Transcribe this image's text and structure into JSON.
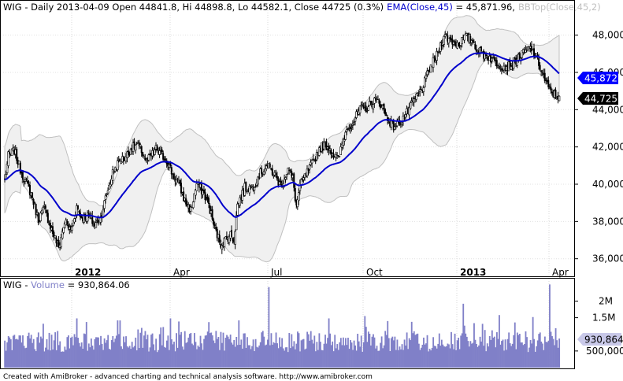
{
  "chart_data": [
    {
      "type": "candlestick",
      "title": {
        "symbol": "WIG",
        "details": " - Daily 2013-04-09 Open 44841.8, Hi 44898.8, Lo 44582.1, Close 44725 (0.3%)",
        "ema_label": "EMA(Close,45)",
        "ema_value": " = 45,871.96,",
        "bb_label": "BBTop(Close,45,2)"
      },
      "x_tick_labels": [
        "2012",
        "Apr",
        "Jul",
        "Oct",
        "2013",
        "Apr"
      ],
      "y_tick_labels": [
        "48,000",
        "46,000",
        "44,000",
        "42,000",
        "40,000",
        "38,000",
        "36,000"
      ],
      "y_ticks": [
        48000,
        46000,
        44000,
        42000,
        40000,
        38000,
        36000
      ],
      "ylim": [
        35100,
        49800
      ],
      "close_anchors": [
        [
          0,
          40200
        ],
        [
          3,
          41500
        ],
        [
          8,
          41800
        ],
        [
          13,
          40800
        ],
        [
          18,
          40000
        ],
        [
          22,
          39500
        ],
        [
          28,
          38100
        ],
        [
          33,
          38700
        ],
        [
          40,
          37400
        ],
        [
          45,
          36600
        ],
        [
          50,
          38000
        ],
        [
          55,
          37500
        ],
        [
          60,
          38800
        ],
        [
          64,
          38200
        ],
        [
          70,
          38300
        ],
        [
          75,
          37800
        ],
        [
          80,
          38200
        ],
        [
          85,
          39500
        ],
        [
          90,
          40600
        ],
        [
          95,
          41200
        ],
        [
          100,
          41400
        ],
        [
          105,
          41900
        ],
        [
          110,
          42100
        ],
        [
          114,
          41800
        ],
        [
          118,
          41200
        ],
        [
          122,
          41500
        ],
        [
          126,
          41900
        ],
        [
          130,
          41600
        ],
        [
          135,
          41300
        ],
        [
          140,
          40500
        ],
        [
          145,
          40000
        ],
        [
          150,
          39100
        ],
        [
          155,
          38600
        ],
        [
          160,
          40000
        ],
        [
          165,
          39600
        ],
        [
          170,
          38900
        ],
        [
          175,
          37600
        ],
        [
          180,
          36800
        ],
        [
          185,
          37100
        ],
        [
          188,
          37300
        ],
        [
          191,
          37000
        ],
        [
          194,
          38900
        ],
        [
          200,
          39800
        ],
        [
          206,
          39800
        ],
        [
          212,
          40500
        ],
        [
          218,
          41000
        ],
        [
          224,
          40600
        ],
        [
          230,
          39900
        ],
        [
          236,
          40800
        ],
        [
          240,
          40300
        ],
        [
          243,
          38800
        ],
        [
          246,
          39900
        ],
        [
          252,
          40600
        ],
        [
          258,
          41300
        ],
        [
          262,
          41900
        ],
        [
          266,
          42100
        ],
        [
          270,
          42000
        ],
        [
          274,
          41600
        ],
        [
          278,
          41300
        ],
        [
          282,
          42400
        ],
        [
          286,
          43100
        ],
        [
          290,
          43300
        ],
        [
          296,
          44000
        ],
        [
          302,
          44100
        ],
        [
          308,
          44500
        ],
        [
          314,
          44300
        ],
        [
          318,
          43600
        ],
        [
          324,
          43100
        ],
        [
          330,
          43400
        ],
        [
          336,
          43900
        ],
        [
          342,
          44600
        ],
        [
          348,
          45100
        ],
        [
          354,
          46200
        ],
        [
          360,
          46900
        ],
        [
          366,
          48000
        ],
        [
          372,
          47700
        ],
        [
          378,
          47500
        ],
        [
          384,
          47900
        ],
        [
          390,
          47700
        ],
        [
          394,
          47200
        ],
        [
          398,
          47000
        ],
        [
          404,
          46800
        ],
        [
          410,
          46500
        ],
        [
          416,
          46300
        ],
        [
          422,
          46400
        ],
        [
          428,
          46800
        ],
        [
          434,
          47100
        ],
        [
          438,
          47300
        ],
        [
          442,
          46900
        ],
        [
          446,
          46300
        ],
        [
          450,
          45600
        ],
        [
          454,
          45000
        ],
        [
          458,
          44800
        ],
        [
          462,
          44725
        ]
      ],
      "ema_series_name": "EMA(Close,45)",
      "ema_last": "45,872",
      "close_last": "44,725",
      "colors": {
        "ema_line": "#0000cc",
        "band_fill": "#f0f0f0",
        "band_edge": "#c0c0c0",
        "price": "#000000",
        "label_ema_bg": "#0000ff",
        "label_close_bg": "#000000"
      }
    },
    {
      "type": "bar",
      "title": {
        "symbol": "WIG",
        "sep": " - ",
        "volume_label": "Volume",
        "volume_value": " = 930,864.06"
      },
      "y_tick_labels": [
        "2M",
        "1.5M",
        "500,000"
      ],
      "y_ticks": [
        2000000,
        1500000,
        500000
      ],
      "ylim": [
        0,
        2650000
      ],
      "volume_last": "930,864",
      "volume_base": 850000,
      "volume_spikes": [
        [
          60,
          1480000
        ],
        [
          94,
          1420000
        ],
        [
          138,
          1480000
        ],
        [
          195,
          1420000
        ],
        [
          220,
          2420000
        ],
        [
          270,
          1480000
        ],
        [
          300,
          1550000
        ],
        [
          382,
          1920000
        ],
        [
          412,
          1580000
        ],
        [
          440,
          1520000
        ],
        [
          454,
          2500000
        ]
      ],
      "colors": {
        "bars": "#8080c8",
        "label_bg": "#c8c8e8",
        "title_accent": "#8080c8"
      }
    }
  ],
  "footer": {
    "credit": "Created with AmiBroker - advanced charting and technical analysis software. http://www.amibroker.com"
  }
}
